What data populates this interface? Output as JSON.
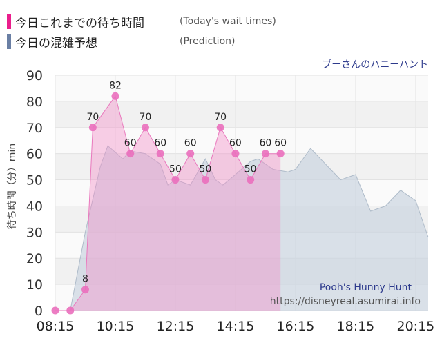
{
  "legend": {
    "actual": {
      "title": "今日これまでの待ち時間",
      "subtitle": "(Today's wait times)",
      "color": "#ea1e8c"
    },
    "prediction": {
      "title": "今日の混雑予想",
      "subtitle": "(Prediction)",
      "color": "#6a7fa4"
    }
  },
  "chart_data": {
    "type": "area",
    "attraction": "プーさんのハニーハント",
    "watermark_name": "Pooh's Hunny Hunt",
    "watermark_url": "https://disneyreal.asumirai.info",
    "ylabel": "待ち時間（分）min",
    "ylim": [
      0,
      90
    ],
    "yticks": [
      0,
      10,
      20,
      30,
      40,
      50,
      60,
      70,
      80,
      90
    ],
    "xlim": [
      "08:15",
      "20:40"
    ],
    "xticks": [
      "08:15",
      "10:15",
      "12:15",
      "14:15",
      "16:15",
      "18:15",
      "20:15"
    ],
    "grid": true,
    "series": [
      {
        "name": "今日これまでの待ち時間",
        "color": "#ea1e8c",
        "points": [
          {
            "x": "08:15",
            "y": 0
          },
          {
            "x": "08:45",
            "y": 0
          },
          {
            "x": "09:15",
            "y": 8
          },
          {
            "x": "09:30",
            "y": 70
          },
          {
            "x": "10:15",
            "y": 82
          },
          {
            "x": "10:45",
            "y": 60
          },
          {
            "x": "11:15",
            "y": 70
          },
          {
            "x": "11:45",
            "y": 60
          },
          {
            "x": "12:15",
            "y": 50
          },
          {
            "x": "12:45",
            "y": 60
          },
          {
            "x": "13:15",
            "y": 50
          },
          {
            "x": "13:45",
            "y": 70
          },
          {
            "x": "14:15",
            "y": 60
          },
          {
            "x": "14:45",
            "y": 50
          },
          {
            "x": "15:15",
            "y": 60
          },
          {
            "x": "15:45",
            "y": 60
          }
        ]
      },
      {
        "name": "今日の混雑予想",
        "color": "#6a7fa4",
        "points": [
          {
            "x": "08:15",
            "y": 0
          },
          {
            "x": "08:45",
            "y": 0
          },
          {
            "x": "09:15",
            "y": 30
          },
          {
            "x": "09:45",
            "y": 55
          },
          {
            "x": "10:00",
            "y": 63
          },
          {
            "x": "10:30",
            "y": 58
          },
          {
            "x": "10:45",
            "y": 61
          },
          {
            "x": "11:15",
            "y": 60
          },
          {
            "x": "11:45",
            "y": 56
          },
          {
            "x": "12:00",
            "y": 48
          },
          {
            "x": "12:15",
            "y": 50
          },
          {
            "x": "12:45",
            "y": 48
          },
          {
            "x": "13:15",
            "y": 58
          },
          {
            "x": "13:35",
            "y": 50
          },
          {
            "x": "13:50",
            "y": 48
          },
          {
            "x": "14:15",
            "y": 52
          },
          {
            "x": "14:45",
            "y": 57
          },
          {
            "x": "15:00",
            "y": 58
          },
          {
            "x": "15:30",
            "y": 54
          },
          {
            "x": "16:00",
            "y": 53
          },
          {
            "x": "16:15",
            "y": 54
          },
          {
            "x": "16:45",
            "y": 62
          },
          {
            "x": "17:15",
            "y": 56
          },
          {
            "x": "17:45",
            "y": 50
          },
          {
            "x": "18:15",
            "y": 52
          },
          {
            "x": "18:45",
            "y": 38
          },
          {
            "x": "19:15",
            "y": 40
          },
          {
            "x": "19:45",
            "y": 46
          },
          {
            "x": "20:15",
            "y": 42
          },
          {
            "x": "20:40",
            "y": 28
          }
        ]
      }
    ]
  }
}
